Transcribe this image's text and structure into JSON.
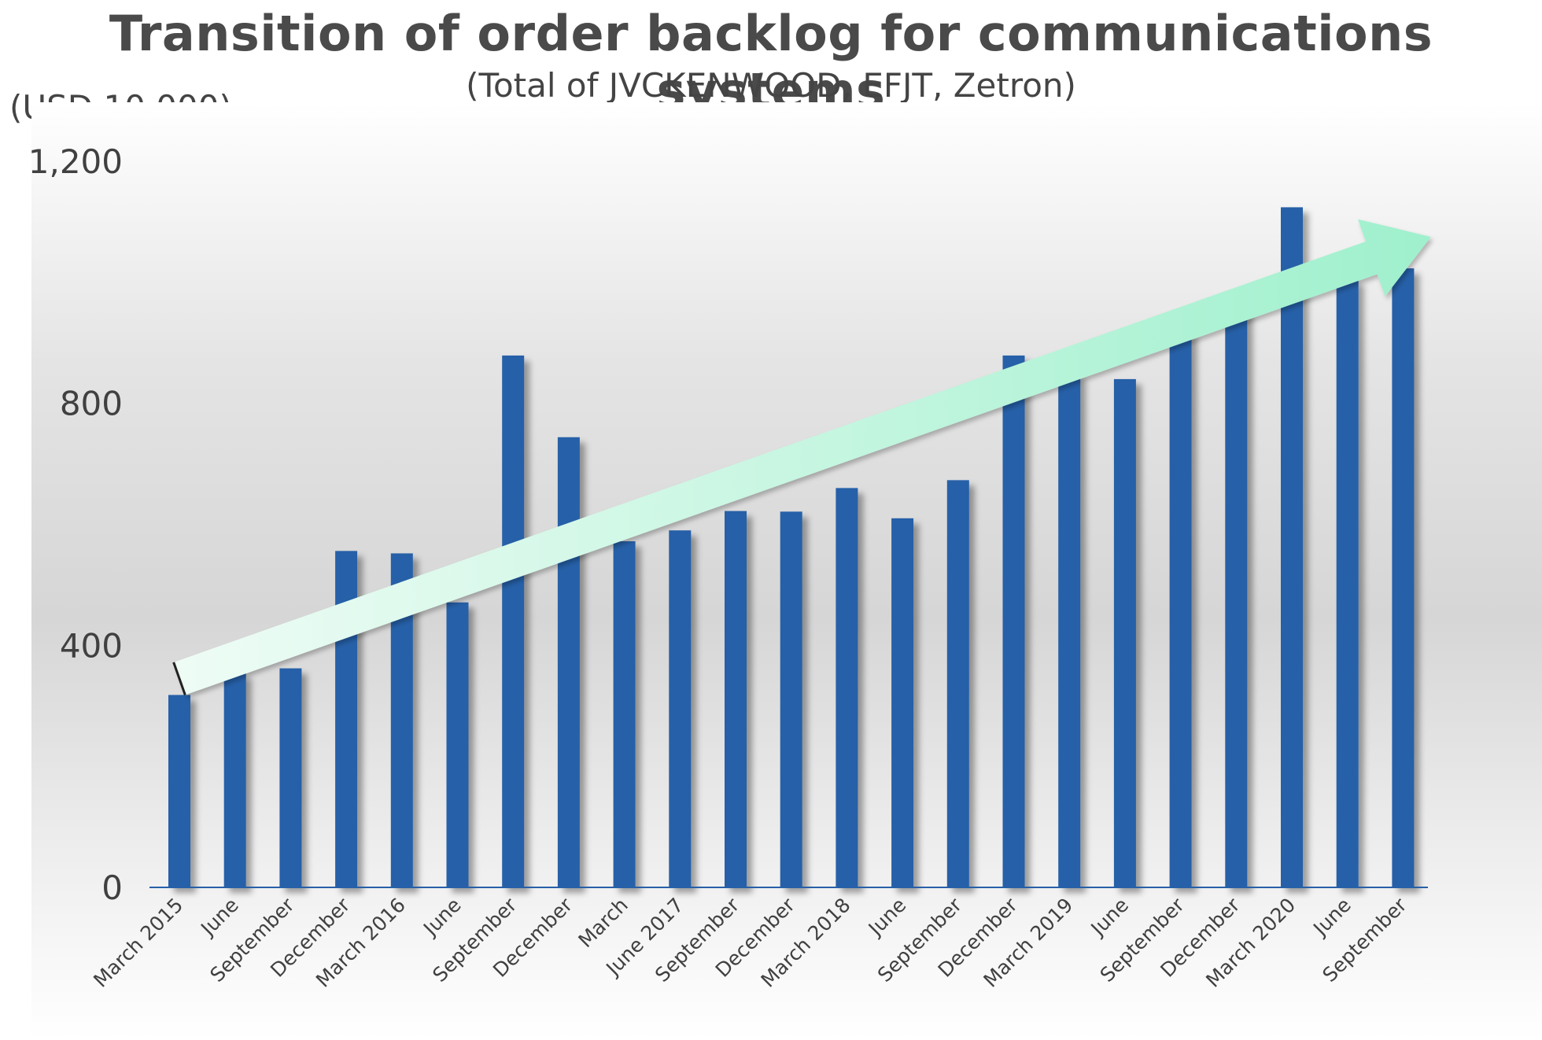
{
  "chart_data": {
    "type": "bar",
    "title": "Transition of order backlog for communications systems",
    "subtitle": "(Total of JVCKENWOOD, EFJT, Zetron)",
    "ylabel": "(USD 10,000)",
    "xlabel": "",
    "ylim": [
      0,
      1200
    ],
    "yticks": [
      "0",
      "400",
      "800",
      "1,200"
    ],
    "grid": false,
    "legend": "none",
    "categories": [
      "March 2015",
      "June",
      "September",
      "December",
      "March 2016",
      "June",
      "September",
      "December",
      "March",
      "June 2017",
      "September",
      "December",
      "March 2018",
      "June",
      "September",
      "December",
      "March 2019",
      "June",
      "September",
      "December",
      "March 2020",
      "June",
      "September"
    ],
    "values": [
      318,
      355,
      362,
      556,
      552,
      471,
      879,
      744,
      572,
      590,
      622,
      621,
      660,
      610,
      673,
      879,
      848,
      840,
      918,
      959,
      1124,
      1005,
      1023
    ],
    "bar_color": "#2760a8",
    "trend_arrow": {
      "from": [
        0,
        345
      ],
      "to": [
        22.5,
        1075
      ],
      "color": "#a8ecd0"
    }
  }
}
